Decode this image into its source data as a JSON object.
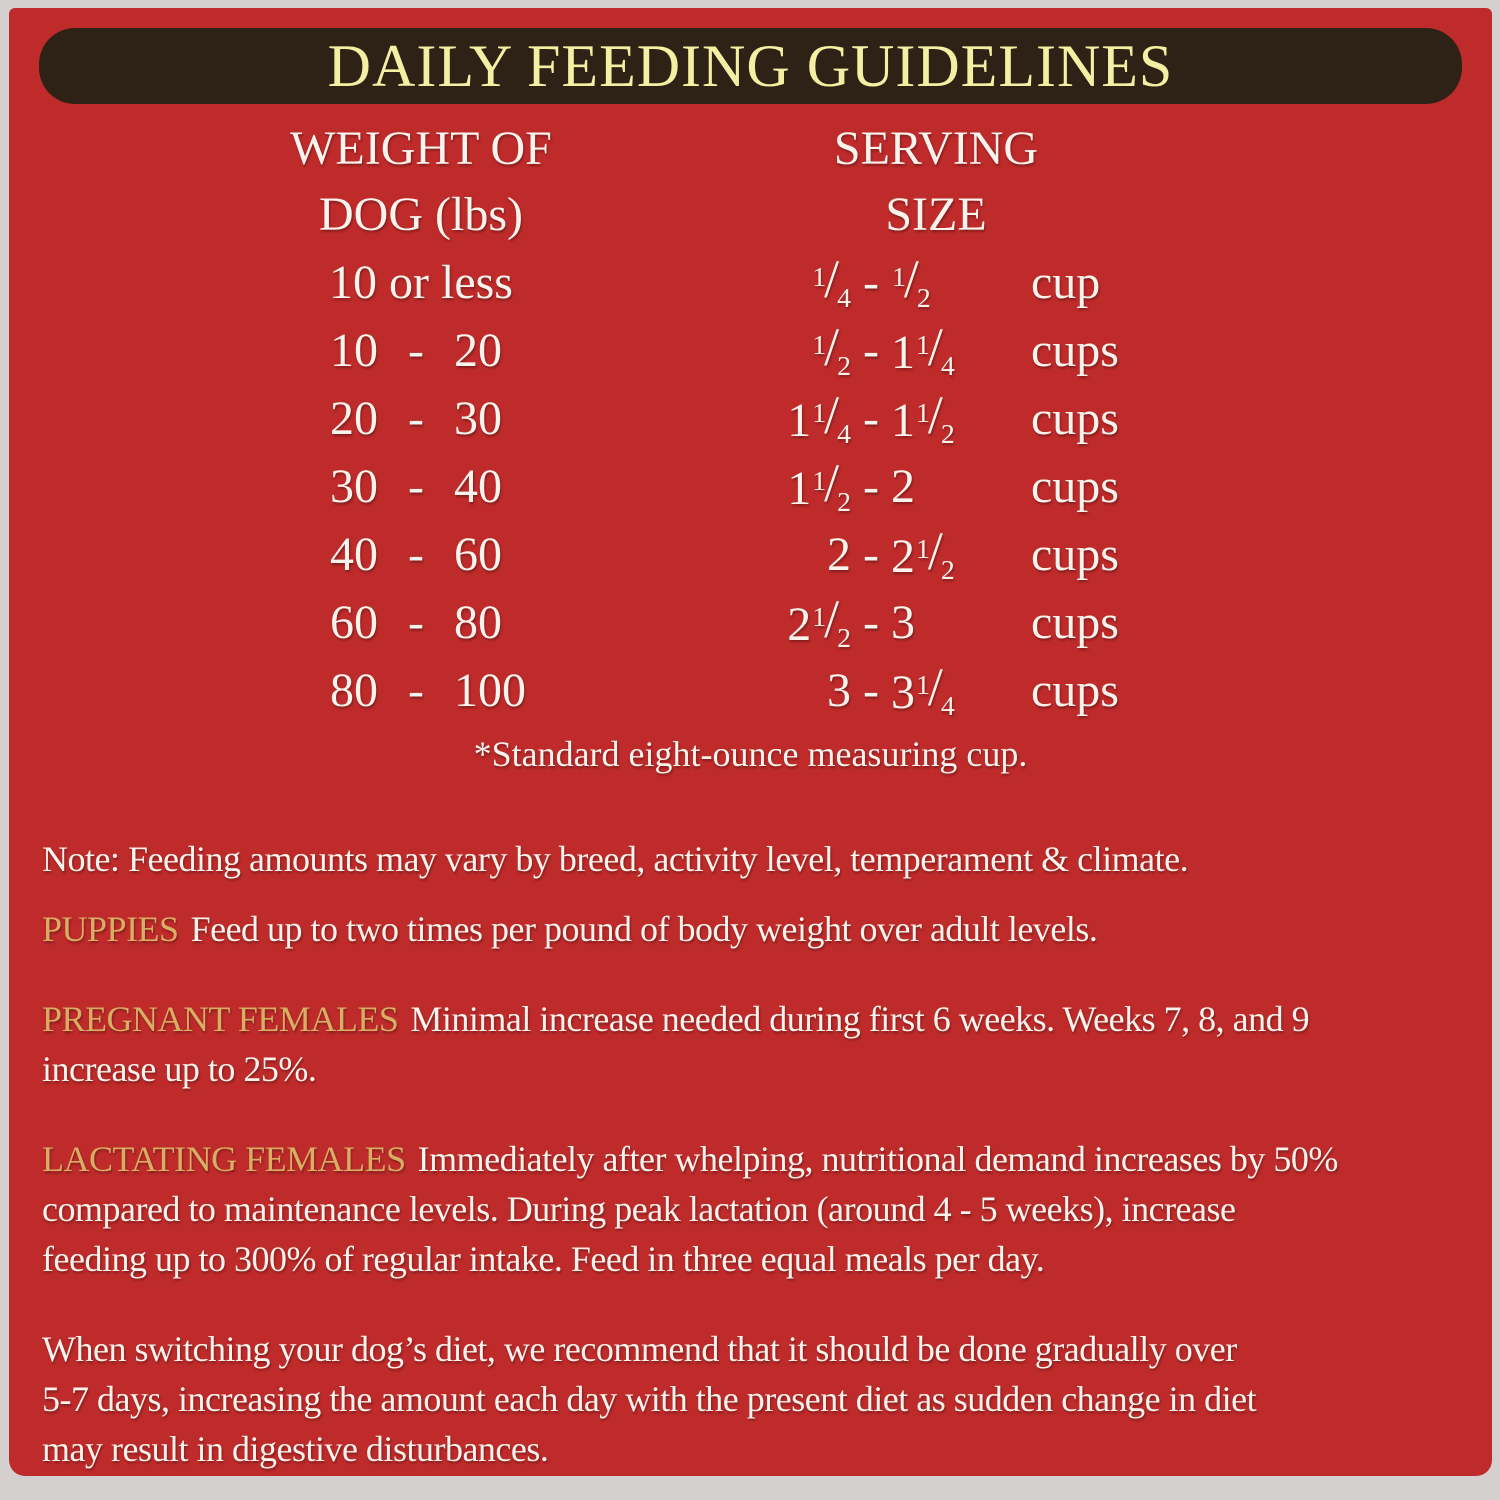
{
  "title": "DAILY FEEDING GUIDELINES",
  "table": {
    "weight_header": [
      "WEIGHT OF",
      "DOG (lbs)"
    ],
    "serving_header": [
      "SERVING",
      "SIZE"
    ],
    "rows": [
      {
        "weight": [
          "10 or less"
        ],
        "min": "1/4",
        "max": "1/2",
        "unit": "cup"
      },
      {
        "weight": [
          "10",
          "-",
          "20"
        ],
        "min": "1/2",
        "max": "1 1/4",
        "unit": "cups"
      },
      {
        "weight": [
          "20",
          "-",
          "30"
        ],
        "min": "1 1/4",
        "max": "1 1/2",
        "unit": "cups"
      },
      {
        "weight": [
          "30",
          "-",
          "40"
        ],
        "min": "1 1/2",
        "max": "2",
        "unit": "cups"
      },
      {
        "weight": [
          "40",
          "-",
          "60"
        ],
        "min": "2",
        "max": "2 1/2",
        "unit": "cups"
      },
      {
        "weight": [
          "60",
          "-",
          "80"
        ],
        "min": "2 1/2",
        "max": "3",
        "unit": "cups"
      },
      {
        "weight": [
          "80",
          "-",
          "100"
        ],
        "min": "3",
        "max": "3 1/4",
        "unit": "cups"
      }
    ],
    "footnote": "*Standard eight-ounce measuring cup."
  },
  "notes": [
    {
      "label": "",
      "text": "Note: Feeding amounts may vary by breed, activity level, temperament & climate."
    },
    {
      "label": "PUPPIES",
      "text": "Feed up to two times per pound of body weight over adult levels."
    },
    {
      "label": "PREGNANT FEMALES",
      "text": "Minimal increase needed during first 6 weeks. Weeks 7, 8, and 9\nincrease up to 25%."
    },
    {
      "label": "LACTATING FEMALES",
      "text": "Immediately after whelping, nutritional demand increases by 50%\ncompared to maintenance levels. During peak lactation (around 4 - 5 weeks), increase\nfeeding up to 300% of regular intake. Feed in three equal meals per day."
    },
    {
      "label": "",
      "text": "When switching your dog’s diet, we recommend that it should be done gradually over\n5-7 days, increasing the amount each day with the present diet as sudden change in diet\nmay result in digestive disturbances."
    }
  ],
  "colors": {
    "background_red": "#bf2b2b",
    "border_gray": "#d4d0cf",
    "header_brown": "#2e2216",
    "title_yellow": "#f4efa2",
    "text_cream": "#f8f3ec",
    "label_gold": "#d7ae63"
  }
}
